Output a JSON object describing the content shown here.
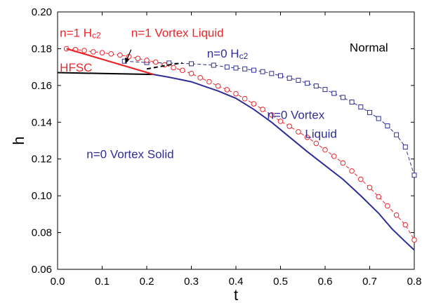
{
  "chart_data": {
    "type": "line",
    "xlabel": "t",
    "ylabel": "h",
    "xlim": [
      0.0,
      0.8
    ],
    "ylim": [
      0.06,
      0.2
    ],
    "xticks": [
      0.0,
      0.1,
      0.2,
      0.3,
      0.4,
      0.5,
      0.6,
      0.7,
      0.8
    ],
    "yticks": [
      0.06,
      0.08,
      0.1,
      0.12,
      0.14,
      0.16,
      0.18,
      0.2
    ],
    "xtick_labels": [
      "0.0",
      "0.1",
      "0.2",
      "0.3",
      "0.4",
      "0.5",
      "0.6",
      "0.7",
      "0.8"
    ],
    "ytick_labels": [
      "0.06",
      "0.08",
      "0.10",
      "0.12",
      "0.14",
      "0.16",
      "0.18",
      "0.20"
    ],
    "grid": false,
    "colors": {
      "red": "#e8262b",
      "blue": "#2e2e96",
      "black": "#000000"
    },
    "series": [
      {
        "key": "n0-hc2",
        "style": "dashed",
        "marker": "square",
        "color": "#2e2e96",
        "x": [
          0.15,
          0.2,
          0.25,
          0.3,
          0.35,
          0.38,
          0.4,
          0.42,
          0.44,
          0.46,
          0.48,
          0.5,
          0.52,
          0.54,
          0.56,
          0.58,
          0.6,
          0.62,
          0.64,
          0.66,
          0.68,
          0.7,
          0.72,
          0.74,
          0.76,
          0.78,
          0.8
        ],
        "y": [
          0.1732,
          0.1725,
          0.1722,
          0.1718,
          0.171,
          0.17,
          0.1695,
          0.169,
          0.1683,
          0.1675,
          0.1665,
          0.1653,
          0.164,
          0.1628,
          0.1612,
          0.1597,
          0.1578,
          0.1557,
          0.1535,
          0.151,
          0.1483,
          0.1453,
          0.142,
          0.138,
          0.1332,
          0.1265,
          0.1112
        ]
      },
      {
        "key": "n1-hc2",
        "style": "dashed",
        "marker": "circle",
        "color": "#e8262b",
        "x": [
          0.02,
          0.04,
          0.06,
          0.08,
          0.1,
          0.12,
          0.14,
          0.16,
          0.18,
          0.2,
          0.22,
          0.24,
          0.26,
          0.28,
          0.3,
          0.32,
          0.34,
          0.36,
          0.38,
          0.4,
          0.42,
          0.44,
          0.46,
          0.48,
          0.5,
          0.52,
          0.54,
          0.56,
          0.58,
          0.6,
          0.62,
          0.64,
          0.66,
          0.68,
          0.7,
          0.72,
          0.74,
          0.76,
          0.78,
          0.8
        ],
        "y": [
          0.18,
          0.1795,
          0.179,
          0.1783,
          0.1778,
          0.1772,
          0.1765,
          0.1757,
          0.1747,
          0.1737,
          0.1727,
          0.1712,
          0.1697,
          0.1682,
          0.1665,
          0.1642,
          0.162,
          0.1597,
          0.1577,
          0.1555,
          0.1528,
          0.15,
          0.147,
          0.144,
          0.1405,
          0.1378,
          0.1348,
          0.1318,
          0.1285,
          0.125,
          0.1215,
          0.1178,
          0.1135,
          0.109,
          0.1045,
          0.0995,
          0.0945,
          0.0895,
          0.0842,
          0.076
        ]
      },
      {
        "key": "n0-solid-boundary",
        "style": "solid",
        "marker": "none",
        "color": "#2e2e96",
        "x": [
          0.215,
          0.25,
          0.28,
          0.3,
          0.33,
          0.36,
          0.4,
          0.44,
          0.48,
          0.52,
          0.56,
          0.6,
          0.64,
          0.68,
          0.72,
          0.75,
          0.78,
          0.8
        ],
        "y": [
          0.166,
          0.1645,
          0.163,
          0.162,
          0.1595,
          0.157,
          0.153,
          0.147,
          0.14,
          0.132,
          0.124,
          0.1165,
          0.109,
          0.1,
          0.0905,
          0.082,
          0.075,
          0.0705
        ]
      },
      {
        "key": "hfsc-boundary",
        "style": "solid",
        "marker": "none",
        "color": "#000000",
        "x": [
          0.0,
          0.1,
          0.215
        ],
        "y": [
          0.167,
          0.1665,
          0.166
        ]
      },
      {
        "key": "n1-vortex-liquid-boundary",
        "style": "dashed",
        "marker": "none",
        "color": "#000000",
        "x": [
          0.2,
          0.25,
          0.28
        ],
        "y": [
          0.169,
          0.1712,
          0.1723
        ]
      },
      {
        "key": "n1-hc2-segment",
        "style": "solid",
        "marker": "none",
        "color": "#e8262b",
        "x": [
          0.02,
          0.215
        ],
        "y": [
          0.18,
          0.166
        ]
      }
    ],
    "annotations": {
      "n1_hc2": {
        "text": "n=1 H",
        "sub": "c2",
        "x": 0.005,
        "y": 0.1865,
        "color": "#e8262b",
        "size": 17
      },
      "n1_vortex_liquid": {
        "text": "n=1 Vortex Liquid",
        "x": 0.165,
        "y": 0.1865,
        "color": "#e8262b",
        "size": 17
      },
      "hfsc": {
        "text": "HFSC",
        "x": 0.005,
        "y": 0.1675,
        "color": "#e8262b",
        "size": 17
      },
      "n0_hc2": {
        "text": "n=0 H",
        "sub": "c2",
        "x": 0.335,
        "y": 0.1752,
        "color": "#2e2e96",
        "size": 17
      },
      "normal": {
        "text": "Normal",
        "x": 0.655,
        "y": 0.1785,
        "color": "#000000",
        "size": 17
      },
      "n0_vortex_liquid_1": {
        "text": "n=0  Vortex",
        "x": 0.47,
        "y": 0.1418,
        "color": "#2e2e96",
        "size": 17
      },
      "n0_vortex_liquid_2": {
        "text": "Liquid",
        "x": 0.555,
        "y": 0.1315,
        "color": "#2e2e96",
        "size": 17
      },
      "n0_vortex_solid": {
        "text": "n=0  Vortex Solid",
        "x": 0.065,
        "y": 0.1205,
        "color": "#2e2e96",
        "size": 17
      }
    },
    "arrow": {
      "x1": 0.165,
      "y1": 0.1795,
      "x2": 0.152,
      "y2": 0.1722
    }
  }
}
